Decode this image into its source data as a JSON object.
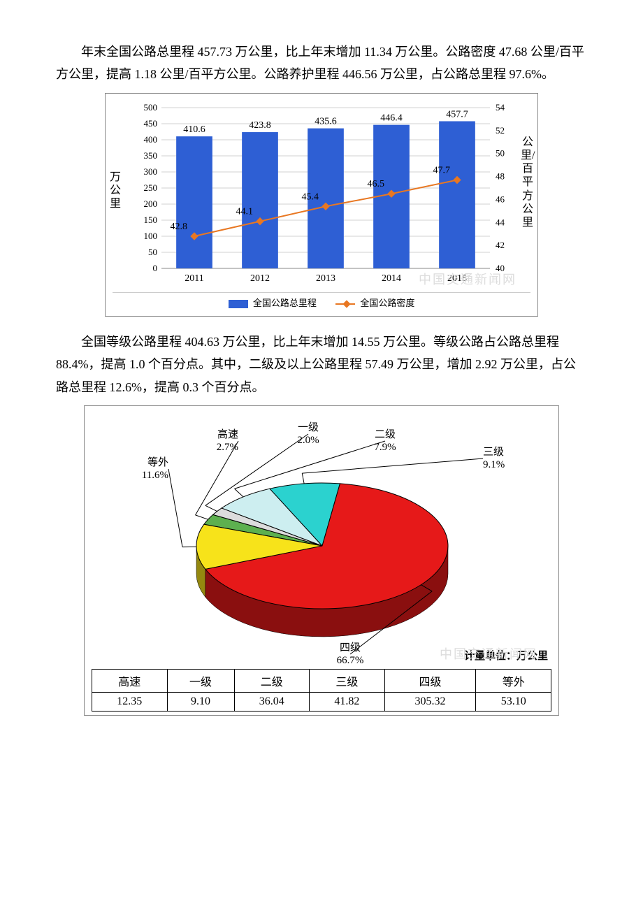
{
  "paragraph1": "年末全国公路总里程 457.73 万公里，比上年末增加 11.34 万公里。公路密度 47.68 公里/百平方公里，提高 1.18 公里/百平方公里。公路养护里程 446.56 万公里，占公路总里程 97.6%。",
  "paragraph2": "全国等级公路里程 404.63 万公里，比上年末增加 14.55 万公里。等级公路占公路总里程 88.4%，提高 1.0 个百分点。其中，二级及以上公路里程 57.49 万公里，增加 2.92 万公里，占公路总里程 12.6%，提高 0.3 个百分点。",
  "bar_chart": {
    "type": "bar+line",
    "years": [
      "2011",
      "2012",
      "2013",
      "2014",
      "2015"
    ],
    "bars": [
      410.6,
      423.8,
      435.6,
      446.4,
      457.7
    ],
    "line": [
      42.8,
      44.1,
      45.4,
      46.5,
      47.7
    ],
    "bar_labels": [
      "410.6",
      "423.8",
      "435.6",
      "446.4",
      "457.7"
    ],
    "line_labels": [
      "42.8",
      "44.1",
      "45.4",
      "46.5",
      "47.7"
    ],
    "y_left": {
      "min": 0,
      "max": 500,
      "step": 50,
      "title": "万公里"
    },
    "y_right": {
      "min": 40,
      "max": 54,
      "step": 2,
      "title": "公里/百平方公里"
    },
    "bar_color": "#2e5fd4",
    "line_color": "#e87722",
    "marker_color": "#e87722",
    "grid_color": "#d0d0d0",
    "text_color": "#000000",
    "legend": {
      "bar": "全国公路总里程",
      "line": "全国公路密度"
    }
  },
  "pie_chart": {
    "type": "pie3d",
    "unit_label": "计量单位：万公里",
    "slices": [
      {
        "name": "高速",
        "pct": "2.7%",
        "value": "12.35",
        "color": "#5db04f"
      },
      {
        "name": "一级",
        "pct": "2.0%",
        "value": "9.10",
        "color": "#dcdcdc"
      },
      {
        "name": "二级",
        "pct": "7.9%",
        "value": "36.04",
        "color": "#cdeef0"
      },
      {
        "name": "三级",
        "pct": "9.1%",
        "value": "41.82",
        "color": "#2bd2cf"
      },
      {
        "name": "四级",
        "pct": "66.7%",
        "value": "305.32",
        "color": "#e61919"
      },
      {
        "name": "等外",
        "pct": "11.6%",
        "value": "53.10",
        "color": "#f7e31a"
      }
    ],
    "edge_color": "#000000",
    "leader_color": "#000000",
    "label_fontsize": 15
  },
  "watermarks": {
    "w1": "中国交通新闻网",
    "w2": "中国交通新闻网"
  }
}
